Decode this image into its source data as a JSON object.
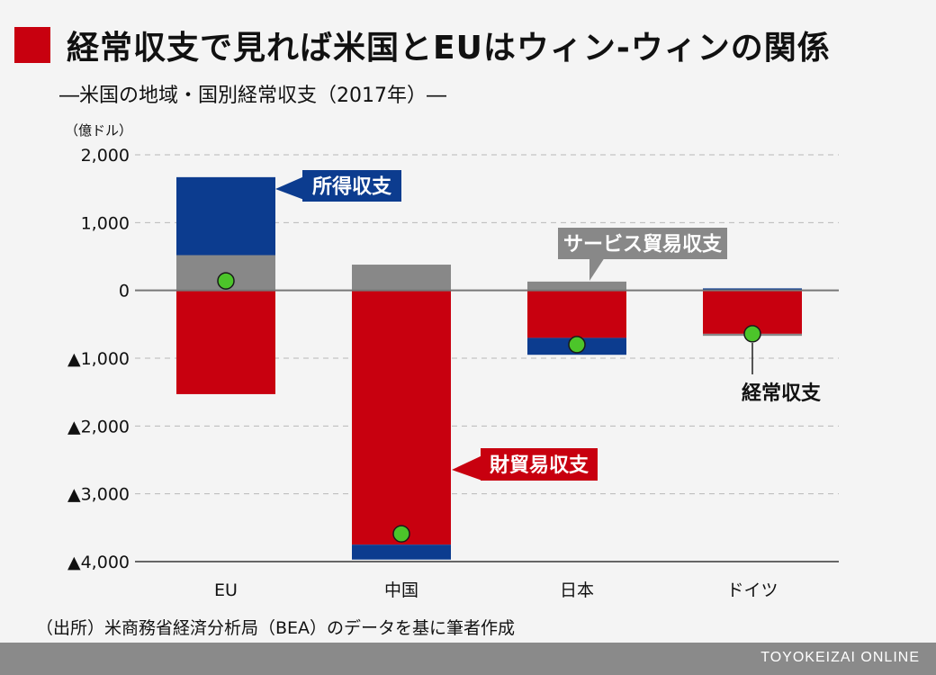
{
  "header": {
    "title": "経常収支で見れば米国とEUはウィン-ウィンの関係",
    "subtitle": "―米国の地域・国別経常収支（2017年）―"
  },
  "source": "（出所）米商務省経済分析局（BEA）のデータを基に筆者作成",
  "footer": {
    "brand": "TOYOKEIZAI ONLINE"
  },
  "colors": {
    "goods": "#c8000f",
    "services": "#888888",
    "income": "#0c3c8f",
    "current": "#4cc52a"
  },
  "chart_data": {
    "type": "bar",
    "stacked": true,
    "unit_label": "（億ドル）",
    "categories": [
      "EU",
      "中国",
      "日本",
      "ドイツ"
    ],
    "yticks": [
      2000,
      1000,
      0,
      -1000,
      -2000,
      -3000,
      -4000
    ],
    "ytick_labels": [
      "2,000",
      "1,000",
      "0",
      "▲1,000",
      "▲2,000",
      "▲3,000",
      "▲4,000"
    ],
    "ylim": [
      -4000,
      2000
    ],
    "grid": true,
    "series": [
      {
        "name": "財貿易収支",
        "key": "goods",
        "values": [
          -1530,
          -3750,
          -700,
          -640
        ]
      },
      {
        "name": "サービス貿易収支",
        "key": "services",
        "values": [
          520,
          380,
          130,
          -30
        ]
      },
      {
        "name": "所得収支",
        "key": "income",
        "values": [
          1150,
          -220,
          -250,
          30
        ]
      }
    ],
    "current_account": {
      "name": "経常収支",
      "values": [
        140,
        -3590,
        -800,
        -640
      ]
    },
    "callouts": [
      {
        "text": "所得収支",
        "series": "income"
      },
      {
        "text": "サービス貿易収支",
        "series": "services"
      },
      {
        "text": "財貿易収支",
        "series": "goods"
      },
      {
        "text": "経常収支",
        "series": "current"
      }
    ]
  }
}
